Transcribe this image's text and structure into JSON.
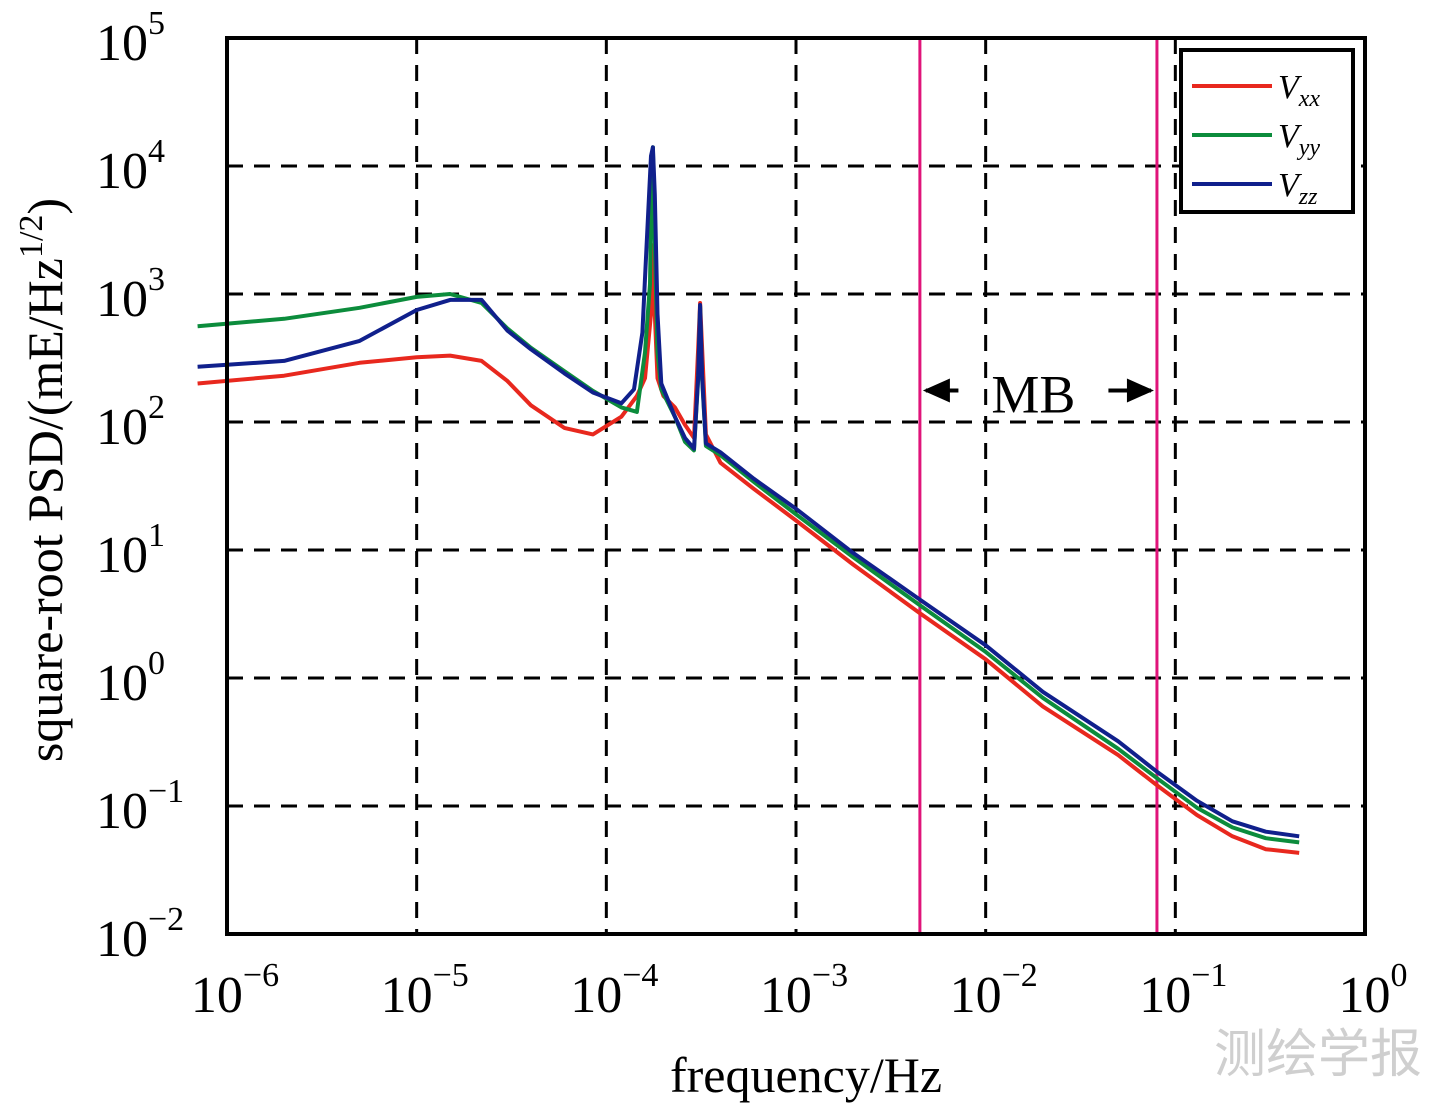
{
  "chart_data": {
    "type": "line",
    "xscale": "log",
    "yscale": "log",
    "xlim": [
      1e-06,
      1
    ],
    "ylim": [
      0.01,
      100000
    ],
    "xlabel": "frequency/Hz",
    "ylabel": "square-root PSD/(mE/Hz",
    "ylabel_sup": "1/2",
    "ylabel_close": ")",
    "grid": true,
    "legend_position": "top-right",
    "x_ticks": [
      {
        "value": 1e-06,
        "base": "10",
        "exp": "−6"
      },
      {
        "value": 1e-05,
        "base": "10",
        "exp": "−5"
      },
      {
        "value": 0.0001,
        "base": "10",
        "exp": "−4"
      },
      {
        "value": 0.001,
        "base": "10",
        "exp": "−3"
      },
      {
        "value": 0.01,
        "base": "10",
        "exp": "−2"
      },
      {
        "value": 0.1,
        "base": "10",
        "exp": "−1"
      },
      {
        "value": 1,
        "base": "10",
        "exp": "0"
      }
    ],
    "y_ticks": [
      {
        "value": 0.01,
        "base": "10",
        "exp": "−2"
      },
      {
        "value": 0.1,
        "base": "10",
        "exp": "−1"
      },
      {
        "value": 1,
        "base": "10",
        "exp": "0"
      },
      {
        "value": 10,
        "base": "10",
        "exp": "1"
      },
      {
        "value": 100,
        "base": "10",
        "exp": "2"
      },
      {
        "value": 1000,
        "base": "10",
        "exp": "3"
      },
      {
        "value": 10000,
        "base": "10",
        "exp": "4"
      },
      {
        "value": 100000,
        "base": "10",
        "exp": "5"
      }
    ],
    "series": [
      {
        "name": "Vxx",
        "label_main": "V",
        "label_sub": "xx",
        "color": "#e8281e",
        "x": [
          7e-07,
          2e-06,
          5e-06,
          1e-05,
          1.5e-05,
          2.2e-05,
          3e-05,
          4e-05,
          6e-05,
          8.5e-05,
          0.00012,
          0.000145,
          0.00016,
          0.000172,
          0.000176,
          0.00018,
          0.000186,
          0.0002,
          0.00023,
          0.00026,
          0.00029,
          0.000305,
          0.000312,
          0.00032,
          0.000335,
          0.0004,
          0.0006,
          0.001,
          0.002,
          0.0045,
          0.01,
          0.02,
          0.05,
          0.08,
          0.13,
          0.2,
          0.3,
          0.45
        ],
        "y": [
          200,
          230,
          290,
          320,
          330,
          300,
          210,
          135,
          90,
          80,
          110,
          160,
          220,
          700,
          2400,
          700,
          220,
          160,
          130,
          95,
          75,
          380,
          850,
          380,
          80,
          48,
          30,
          17,
          7.7,
          3.2,
          1.4,
          0.6,
          0.25,
          0.145,
          0.085,
          0.058,
          0.046,
          0.043
        ]
      },
      {
        "name": "Vyy",
        "label_main": "V",
        "label_sub": "yy",
        "color": "#0c8c3c",
        "x": [
          7e-07,
          2e-06,
          5e-06,
          1e-05,
          1.5e-05,
          2.2e-05,
          3e-05,
          4e-05,
          6e-05,
          8.5e-05,
          0.00012,
          0.000145,
          0.00016,
          0.00017,
          0.000174,
          0.000176,
          0.00018,
          0.000186,
          0.000195,
          0.00023,
          0.00026,
          0.00029,
          0.000305,
          0.000312,
          0.00032,
          0.000335,
          0.0004,
          0.0006,
          0.001,
          0.002,
          0.0045,
          0.01,
          0.02,
          0.05,
          0.08,
          0.13,
          0.2,
          0.3,
          0.45
        ],
        "y": [
          560,
          640,
          780,
          950,
          1000,
          850,
          540,
          380,
          250,
          175,
          130,
          120,
          350,
          1200,
          12000,
          14000,
          2500,
          350,
          180,
          110,
          70,
          60,
          220,
          800,
          220,
          65,
          55,
          34,
          19,
          8.8,
          3.7,
          1.6,
          0.7,
          0.28,
          0.165,
          0.097,
          0.068,
          0.056,
          0.052
        ]
      },
      {
        "name": "Vzz",
        "label_main": "V",
        "label_sub": "zz",
        "color": "#10208c",
        "x": [
          7e-07,
          2e-06,
          5e-06,
          1e-05,
          1.5e-05,
          2.2e-05,
          3e-05,
          4e-05,
          6e-05,
          8.5e-05,
          0.00012,
          0.00014,
          0.000155,
          0.000162,
          0.000168,
          0.000172,
          0.000176,
          0.00018,
          0.000186,
          0.000195,
          0.00023,
          0.00026,
          0.00029,
          0.000305,
          0.000312,
          0.00032,
          0.000335,
          0.0004,
          0.0006,
          0.001,
          0.002,
          0.0045,
          0.01,
          0.02,
          0.05,
          0.08,
          0.13,
          0.2,
          0.3,
          0.45
        ],
        "y": [
          270,
          300,
          430,
          750,
          900,
          900,
          520,
          370,
          240,
          170,
          140,
          180,
          500,
          2000,
          6000,
          12000,
          14000,
          6000,
          700,
          200,
          110,
          75,
          62,
          230,
          820,
          230,
          68,
          58,
          36,
          21,
          9.5,
          4.1,
          1.8,
          0.78,
          0.32,
          0.185,
          0.11,
          0.076,
          0.063,
          0.058
        ]
      }
    ],
    "vlines": [
      {
        "value": 0.0045,
        "color": "#e0147a"
      },
      {
        "value": 0.08,
        "color": "#e0147a"
      }
    ],
    "annotation": {
      "text": "MB",
      "y_value": 170
    }
  },
  "watermark": "测绘学报"
}
